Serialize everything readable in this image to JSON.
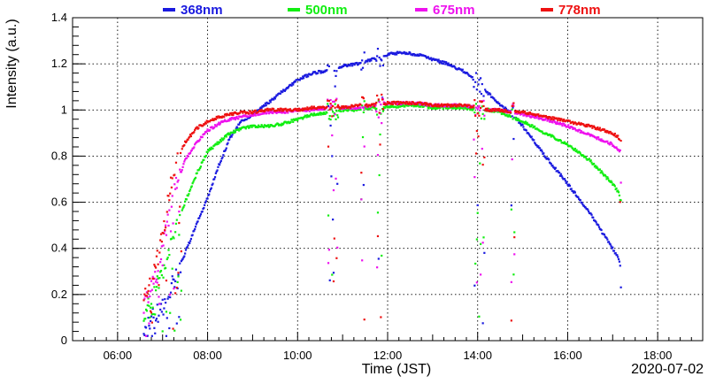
{
  "chart_data": {
    "type": "scatter",
    "xlabel": "Time (JST)",
    "ylabel": "Intensity (a.u.)",
    "date_label": "2020-07-02",
    "xlim": [
      "05:00",
      "19:00"
    ],
    "ylim": [
      0,
      1.4
    ],
    "grid": true,
    "legend_position": "top",
    "x_ticks": [
      "06:00",
      "08:00",
      "10:00",
      "12:00",
      "14:00",
      "16:00",
      "18:00"
    ],
    "y_ticks": [
      "0",
      "0.2",
      "0.4",
      "0.6",
      "0.8",
      "1",
      "1.2",
      "1.4"
    ],
    "dip_windows": [
      [
        "06:35",
        "07:25"
      ],
      [
        "10:40",
        "10:55"
      ],
      [
        "11:25",
        "11:30"
      ],
      [
        "11:45",
        "11:55"
      ],
      [
        "13:55",
        "14:10"
      ],
      [
        "14:45",
        "14:50"
      ],
      [
        "17:10",
        "17:15"
      ]
    ],
    "series": [
      {
        "name": "368nm",
        "color": "#1a1adf",
        "x": [
          "06:35",
          "06:45",
          "07:00",
          "07:15",
          "07:30",
          "07:45",
          "08:00",
          "08:15",
          "08:30",
          "08:45",
          "09:00",
          "09:20",
          "09:40",
          "10:00",
          "10:20",
          "10:40",
          "11:00",
          "11:20",
          "11:40",
          "12:00",
          "12:20",
          "12:40",
          "13:00",
          "13:20",
          "13:40",
          "14:00",
          "14:15",
          "14:30",
          "14:45",
          "15:00",
          "15:30",
          "16:00",
          "16:30",
          "17:00",
          "17:12"
        ],
        "y": [
          0.06,
          0.1,
          0.15,
          0.25,
          0.38,
          0.5,
          0.62,
          0.76,
          0.88,
          0.95,
          0.98,
          1.03,
          1.08,
          1.13,
          1.16,
          1.17,
          1.19,
          1.2,
          1.22,
          1.24,
          1.25,
          1.24,
          1.22,
          1.2,
          1.17,
          1.12,
          1.07,
          1.02,
          0.99,
          0.93,
          0.8,
          0.68,
          0.55,
          0.4,
          0.33
        ]
      },
      {
        "name": "500nm",
        "color": "#11ee11",
        "x": [
          "06:35",
          "06:45",
          "07:00",
          "07:15",
          "07:30",
          "07:45",
          "08:00",
          "08:15",
          "08:30",
          "08:45",
          "09:00",
          "09:20",
          "09:40",
          "10:00",
          "10:20",
          "10:40",
          "11:00",
          "11:20",
          "11:40",
          "12:00",
          "12:20",
          "12:40",
          "13:00",
          "13:20",
          "13:40",
          "14:00",
          "14:15",
          "14:30",
          "14:45",
          "15:00",
          "15:30",
          "16:00",
          "16:30",
          "17:00",
          "17:12"
        ],
        "y": [
          0.12,
          0.18,
          0.3,
          0.45,
          0.6,
          0.72,
          0.82,
          0.86,
          0.9,
          0.92,
          0.93,
          0.93,
          0.94,
          0.96,
          0.98,
          0.99,
          1.0,
          1.0,
          1.01,
          1.01,
          1.02,
          1.02,
          1.01,
          1.01,
          1.01,
          1.0,
          1.0,
          0.99,
          0.97,
          0.95,
          0.9,
          0.85,
          0.78,
          0.68,
          0.62
        ]
      },
      {
        "name": "675nm",
        "color": "#ee11ee",
        "x": [
          "06:35",
          "06:45",
          "07:00",
          "07:15",
          "07:30",
          "07:45",
          "08:00",
          "08:15",
          "08:30",
          "08:45",
          "09:00",
          "09:20",
          "09:40",
          "10:00",
          "10:20",
          "10:40",
          "11:00",
          "11:20",
          "11:40",
          "12:00",
          "12:20",
          "12:40",
          "13:00",
          "13:20",
          "13:40",
          "14:00",
          "14:15",
          "14:30",
          "14:45",
          "15:00",
          "15:30",
          "16:00",
          "16:30",
          "17:00",
          "17:12"
        ],
        "y": [
          0.15,
          0.22,
          0.4,
          0.65,
          0.78,
          0.86,
          0.91,
          0.94,
          0.96,
          0.97,
          0.98,
          0.99,
          0.99,
          1.0,
          1.0,
          1.01,
          1.01,
          1.01,
          1.02,
          1.03,
          1.03,
          1.03,
          1.02,
          1.02,
          1.02,
          1.01,
          1.0,
          1.0,
          0.99,
          0.98,
          0.96,
          0.93,
          0.89,
          0.85,
          0.81
        ]
      },
      {
        "name": "778nm",
        "color": "#ee1111",
        "x": [
          "06:35",
          "06:45",
          "07:00",
          "07:15",
          "07:30",
          "07:45",
          "08:00",
          "08:15",
          "08:30",
          "08:45",
          "09:00",
          "09:20",
          "09:40",
          "10:00",
          "10:20",
          "10:40",
          "11:00",
          "11:20",
          "11:40",
          "12:00",
          "12:20",
          "12:40",
          "13:00",
          "13:20",
          "13:40",
          "14:00",
          "14:15",
          "14:30",
          "14:45",
          "15:00",
          "15:30",
          "16:00",
          "16:30",
          "17:00",
          "17:12"
        ],
        "y": [
          0.18,
          0.25,
          0.45,
          0.75,
          0.86,
          0.92,
          0.95,
          0.97,
          0.98,
          0.99,
          0.99,
          1.0,
          1.0,
          1.0,
          1.01,
          1.01,
          1.01,
          1.02,
          1.02,
          1.03,
          1.03,
          1.03,
          1.02,
          1.02,
          1.02,
          1.01,
          1.0,
          1.0,
          0.99,
          0.99,
          0.97,
          0.95,
          0.93,
          0.9,
          0.87
        ]
      }
    ]
  }
}
